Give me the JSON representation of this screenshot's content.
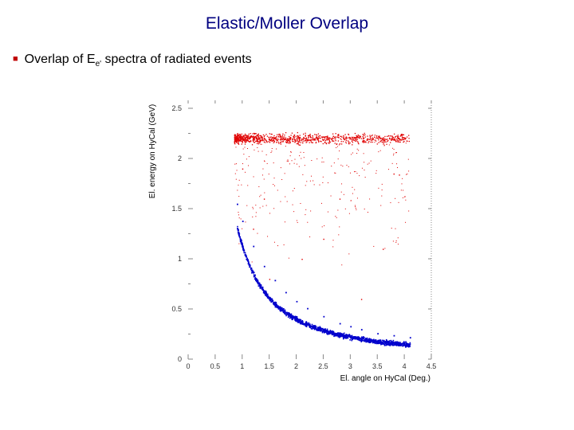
{
  "slide": {
    "title": "Elastic/Moller Overlap",
    "bullet_prefix": "Overlap of E",
    "bullet_sub": "e'",
    "bullet_suffix": " spectra of radiated events"
  },
  "colors": {
    "title": "#000080",
    "bullet_marker": "#c00000",
    "elastic": "#e00000",
    "moller": "#0000cc",
    "axis": "#888888"
  },
  "chart_data": {
    "type": "scatter",
    "xlabel": "El. angle on HyCal (Deg.)",
    "ylabel": "El. energy on HyCal (GeV)",
    "xlim": [
      0,
      4.5
    ],
    "ylim": [
      0,
      2.5
    ],
    "x_ticks": [
      0,
      0.5,
      1,
      1.5,
      2,
      2.5,
      3,
      3.5,
      4,
      4.5
    ],
    "x_tick_labels": [
      "0",
      "0.5",
      "1",
      "1.5",
      "2",
      "2.5",
      "3",
      "3.5",
      "4",
      "4.5"
    ],
    "y_ticks": [
      0,
      0.5,
      1,
      1.5,
      2,
      2.5
    ],
    "y_tick_labels": [
      "0",
      "0.5",
      "1",
      "1.5",
      "2",
      "2.5"
    ],
    "series": [
      {
        "color": "#e00000",
        "description_band": {
          "x_range": [
            0.85,
            4.1
          ],
          "y_center": 2.2,
          "y_width": 0.12,
          "tail_y_range": [
            0.9,
            2.2
          ]
        },
        "points": [
          [
            0.9,
            2.23
          ],
          [
            1.0,
            2.21
          ],
          [
            1.1,
            2.22
          ],
          [
            1.2,
            2.2
          ],
          [
            1.3,
            2.21
          ],
          [
            1.5,
            2.2
          ],
          [
            1.7,
            2.22
          ],
          [
            2.0,
            2.2
          ],
          [
            2.3,
            2.21
          ],
          [
            2.6,
            2.19
          ],
          [
            3.0,
            2.2
          ],
          [
            3.4,
            2.21
          ],
          [
            3.8,
            2.2
          ],
          [
            4.0,
            2.21
          ],
          [
            3.8,
            1.85
          ],
          [
            3.9,
            1.84
          ],
          [
            1.2,
            1.3
          ],
          [
            1.5,
            0.8
          ],
          [
            2.1,
            1.0
          ],
          [
            2.8,
            1.6
          ],
          [
            3.2,
            0.6
          ],
          [
            1.0,
            1.9
          ],
          [
            1.4,
            1.6
          ],
          [
            2.5,
            1.2
          ],
          [
            3.6,
            1.1
          ]
        ]
      },
      {
        "color": "#0000cc",
        "description_curve": "E = 0.0233 + 1.1 / x^1.55 (approx. Moller kinematics)",
        "points": [
          [
            0.9,
            1.55
          ],
          [
            1.0,
            1.38
          ],
          [
            1.2,
            1.13
          ],
          [
            1.4,
            0.93
          ],
          [
            1.6,
            0.79
          ],
          [
            1.8,
            0.67
          ],
          [
            2.0,
            0.58
          ],
          [
            2.2,
            0.51
          ],
          [
            2.5,
            0.43
          ],
          [
            2.8,
            0.36
          ],
          [
            3.0,
            0.33
          ],
          [
            3.2,
            0.3
          ],
          [
            3.5,
            0.26
          ],
          [
            3.8,
            0.24
          ],
          [
            4.1,
            0.22
          ]
        ]
      }
    ],
    "grid": false
  }
}
